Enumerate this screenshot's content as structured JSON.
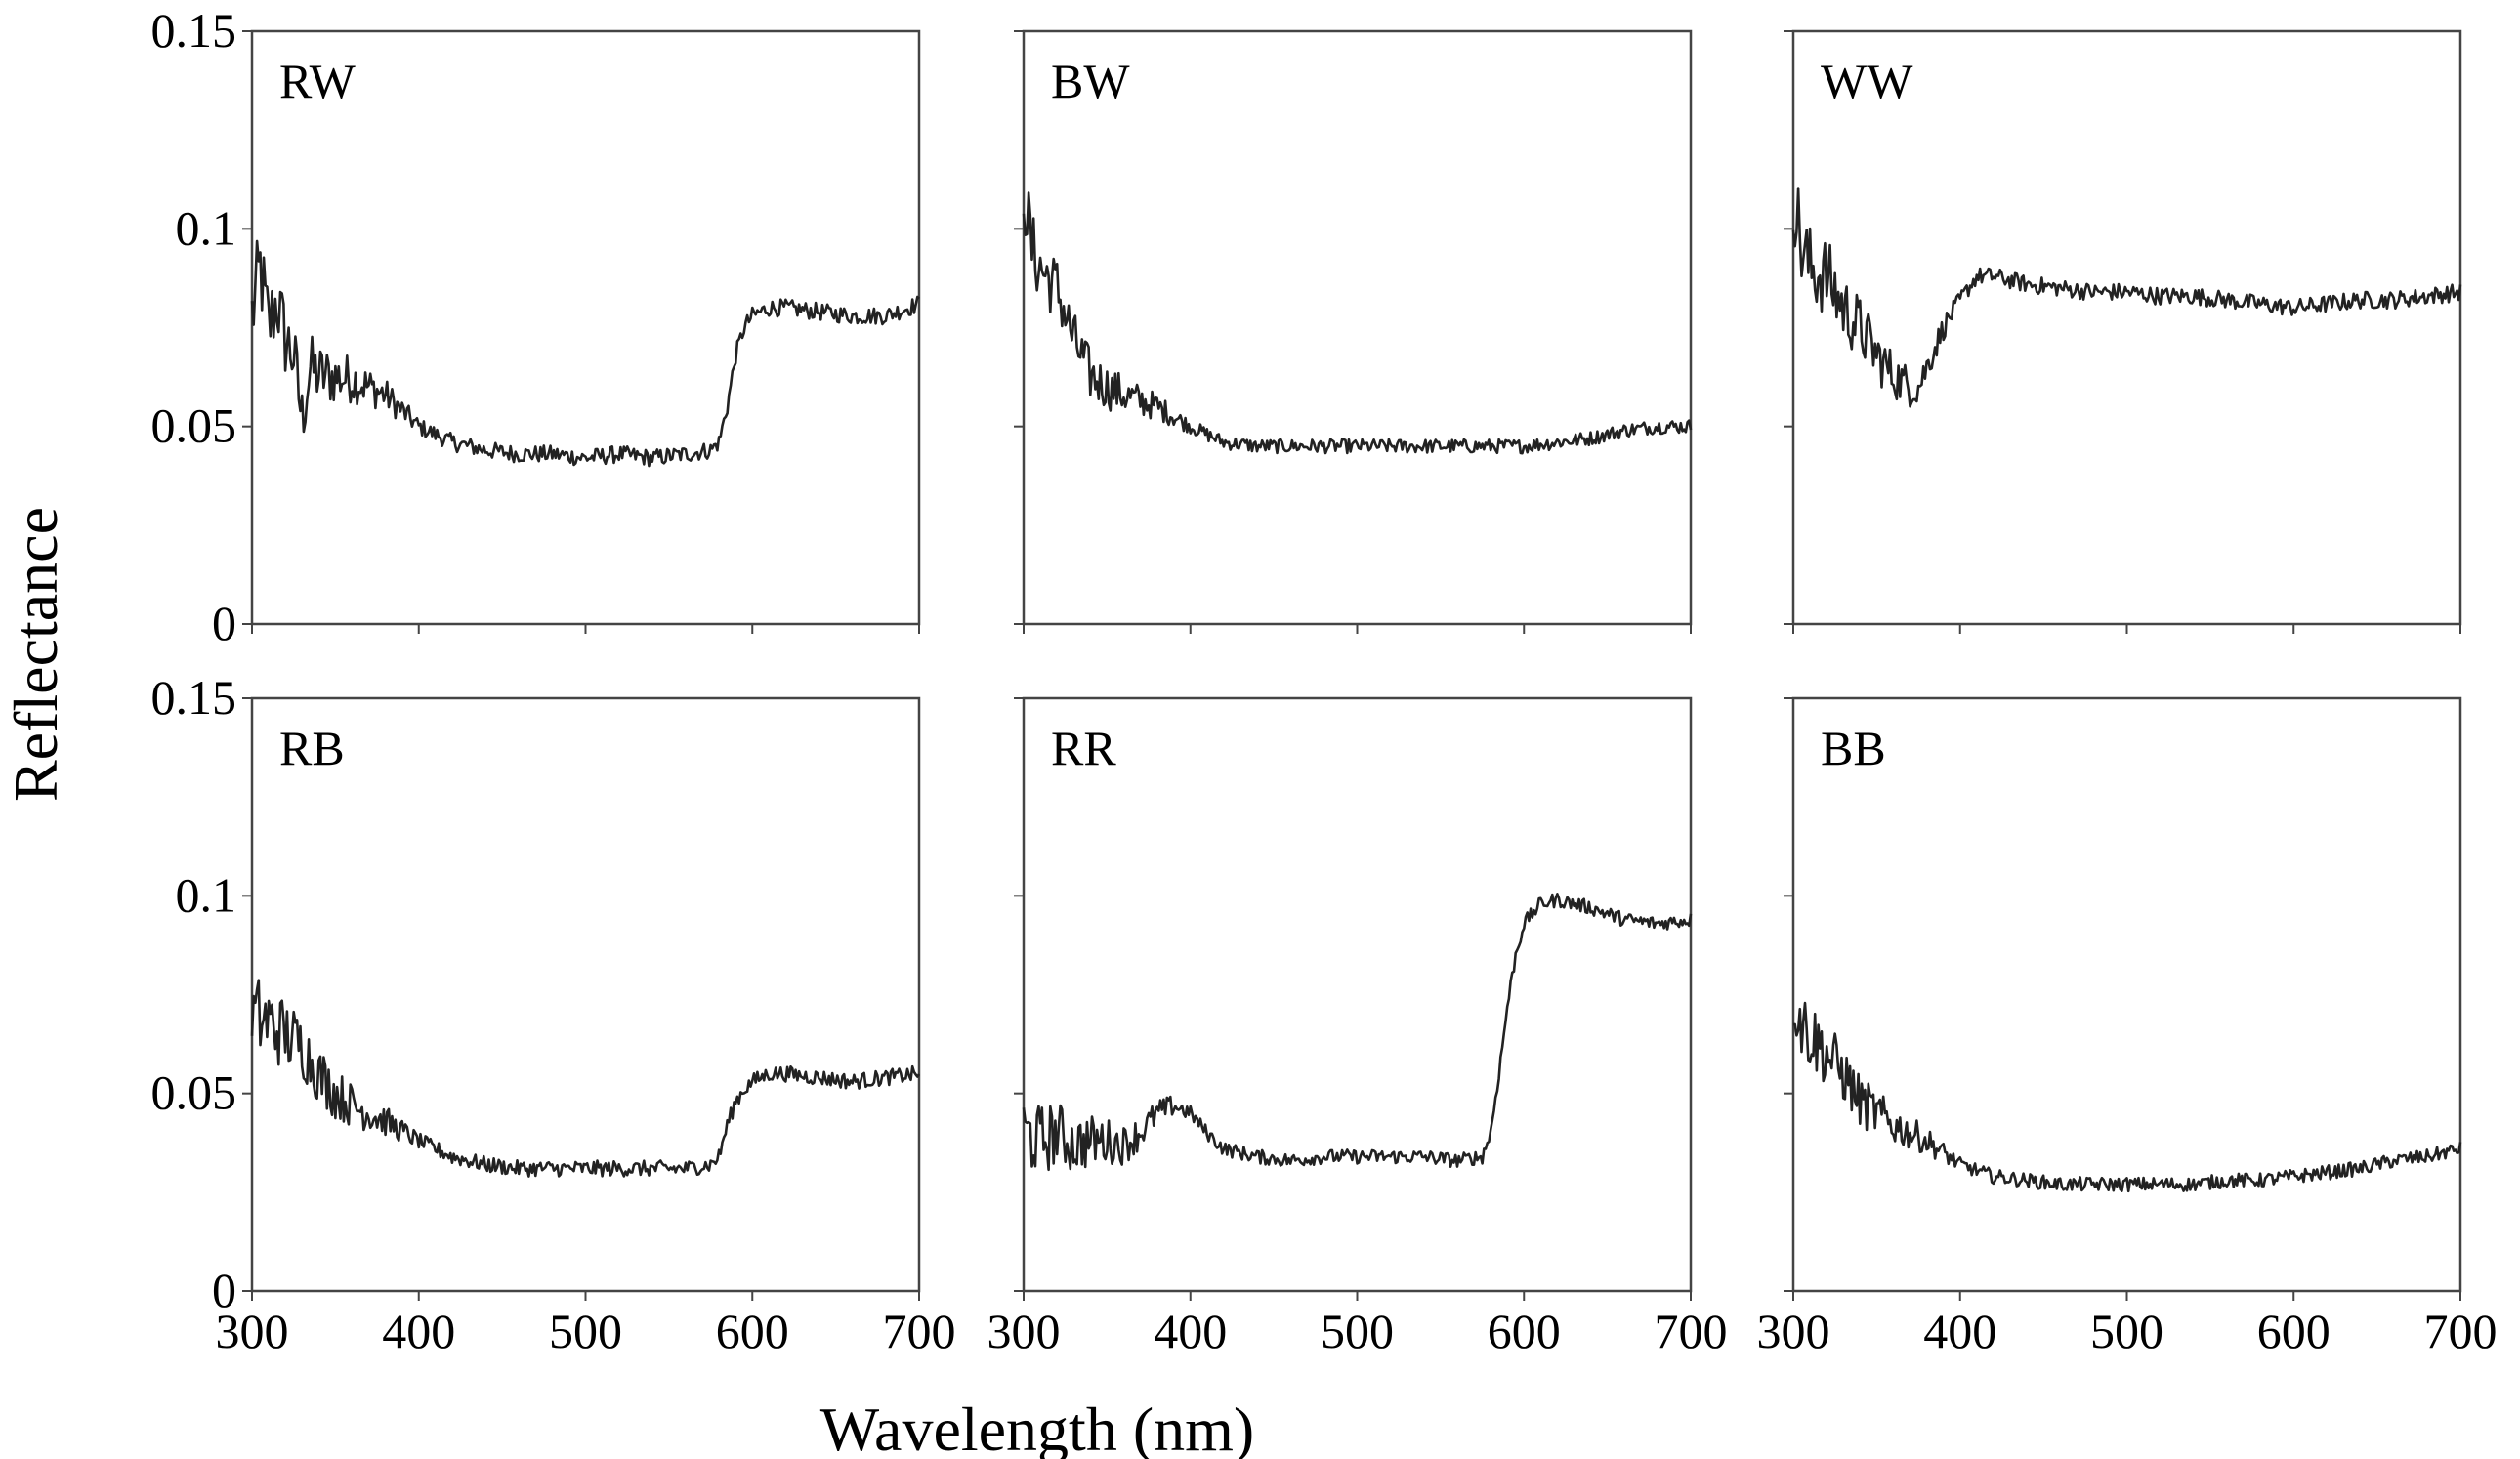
{
  "figure": {
    "ylabel": "Reflectance",
    "xlabel": "Wavelength (nm)"
  },
  "chart_data": [
    {
      "type": "line",
      "title": "RW",
      "xlim": [
        300,
        700
      ],
      "ylim": [
        0,
        0.15
      ],
      "xticks": [
        "300",
        "400",
        "500",
        "600",
        "700"
      ],
      "yticks": [
        "0",
        "0.05",
        "0.1",
        "0.15"
      ],
      "color": "#222222",
      "grid": false,
      "noise": 0.0022,
      "x": [
        300,
        305,
        310,
        315,
        320,
        325,
        330,
        335,
        340,
        360,
        380,
        400,
        420,
        440,
        460,
        480,
        500,
        520,
        540,
        560,
        575,
        580,
        585,
        590,
        595,
        600,
        610,
        620,
        640,
        660,
        680,
        700
      ],
      "y": [
        0.078,
        0.09,
        0.075,
        0.082,
        0.072,
        0.068,
        0.052,
        0.065,
        0.063,
        0.062,
        0.058,
        0.05,
        0.046,
        0.044,
        0.043,
        0.043,
        0.042,
        0.043,
        0.042,
        0.043,
        0.044,
        0.046,
        0.055,
        0.068,
        0.075,
        0.078,
        0.08,
        0.08,
        0.079,
        0.078,
        0.078,
        0.081
      ]
    },
    {
      "type": "line",
      "title": "BW",
      "xlim": [
        300,
        700
      ],
      "ylim": [
        0,
        0.15
      ],
      "xticks": [
        "300",
        "400",
        "500",
        "600",
        "700"
      ],
      "yticks": [
        "0",
        "0.05",
        "0.1",
        "0.15"
      ],
      "color": "#222222",
      "grid": false,
      "noise": 0.0018,
      "x": [
        300,
        305,
        310,
        320,
        330,
        340,
        350,
        360,
        380,
        400,
        420,
        440,
        460,
        480,
        500,
        520,
        540,
        560,
        580,
        600,
        620,
        640,
        660,
        680,
        700
      ],
      "y": [
        0.11,
        0.095,
        0.09,
        0.085,
        0.072,
        0.063,
        0.06,
        0.058,
        0.055,
        0.05,
        0.046,
        0.045,
        0.045,
        0.045,
        0.045,
        0.045,
        0.045,
        0.045,
        0.045,
        0.045,
        0.046,
        0.047,
        0.049,
        0.05,
        0.05
      ]
    },
    {
      "type": "line",
      "title": "WW",
      "xlim": [
        300,
        700
      ],
      "ylim": [
        0,
        0.15
      ],
      "xticks": [
        "300",
        "400",
        "500",
        "600",
        "700"
      ],
      "yticks": [
        "0",
        "0.05",
        "0.1",
        "0.15"
      ],
      "color": "#222222",
      "grid": false,
      "noise": 0.0022,
      "x": [
        300,
        305,
        310,
        320,
        330,
        340,
        350,
        360,
        370,
        375,
        380,
        390,
        400,
        410,
        420,
        440,
        460,
        480,
        500,
        520,
        540,
        560,
        580,
        600,
        620,
        640,
        660,
        680,
        700
      ],
      "y": [
        0.11,
        0.095,
        0.09,
        0.088,
        0.08,
        0.075,
        0.068,
        0.063,
        0.06,
        0.06,
        0.065,
        0.075,
        0.082,
        0.088,
        0.088,
        0.086,
        0.085,
        0.084,
        0.084,
        0.083,
        0.083,
        0.082,
        0.081,
        0.08,
        0.081,
        0.082,
        0.082,
        0.083,
        0.084
      ]
    },
    {
      "type": "line",
      "title": "RB",
      "xlim": [
        300,
        700
      ],
      "ylim": [
        0,
        0.15
      ],
      "xticks": [
        "300",
        "400",
        "500",
        "600",
        "700"
      ],
      "yticks": [
        "0",
        "0.05",
        "0.1",
        "0.15"
      ],
      "color": "#222222",
      "grid": false,
      "noise": 0.002,
      "x": [
        300,
        310,
        320,
        330,
        340,
        350,
        360,
        380,
        400,
        420,
        440,
        460,
        480,
        500,
        520,
        540,
        560,
        575,
        580,
        585,
        590,
        595,
        600,
        610,
        620,
        640,
        660,
        680,
        700
      ],
      "y": [
        0.07,
        0.068,
        0.065,
        0.062,
        0.055,
        0.05,
        0.047,
        0.043,
        0.038,
        0.034,
        0.032,
        0.031,
        0.031,
        0.031,
        0.031,
        0.031,
        0.031,
        0.032,
        0.034,
        0.042,
        0.048,
        0.051,
        0.053,
        0.055,
        0.055,
        0.054,
        0.053,
        0.054,
        0.055
      ]
    },
    {
      "type": "line",
      "title": "RR",
      "xlim": [
        300,
        700
      ],
      "ylim": [
        0,
        0.15
      ],
      "xticks": [
        "300",
        "400",
        "500",
        "600",
        "700"
      ],
      "yticks": [
        "0",
        "0.05",
        "0.1",
        "0.15"
      ],
      "color": "#222222",
      "grid": false,
      "noise": 0.0018,
      "x": [
        300,
        310,
        320,
        330,
        340,
        350,
        360,
        370,
        380,
        390,
        400,
        410,
        420,
        440,
        460,
        480,
        500,
        520,
        540,
        560,
        575,
        580,
        585,
        590,
        595,
        600,
        610,
        620,
        640,
        660,
        680,
        700
      ],
      "y": [
        0.04,
        0.038,
        0.04,
        0.037,
        0.038,
        0.038,
        0.037,
        0.04,
        0.045,
        0.047,
        0.045,
        0.04,
        0.036,
        0.034,
        0.033,
        0.034,
        0.034,
        0.034,
        0.034,
        0.033,
        0.034,
        0.04,
        0.055,
        0.072,
        0.085,
        0.093,
        0.098,
        0.099,
        0.097,
        0.094,
        0.093,
        0.094
      ]
    },
    {
      "type": "line",
      "title": "BB",
      "xlim": [
        300,
        700
      ],
      "ylim": [
        0,
        0.15
      ],
      "xticks": [
        "300",
        "400",
        "500",
        "600",
        "700"
      ],
      "yticks": [
        "0",
        "0.05",
        "0.1",
        "0.15"
      ],
      "color": "#222222",
      "grid": false,
      "noise": 0.0018,
      "x": [
        300,
        305,
        310,
        320,
        330,
        340,
        350,
        360,
        380,
        400,
        420,
        440,
        460,
        480,
        500,
        520,
        540,
        560,
        580,
        600,
        620,
        640,
        660,
        680,
        700
      ],
      "y": [
        0.075,
        0.068,
        0.065,
        0.06,
        0.055,
        0.048,
        0.045,
        0.042,
        0.038,
        0.032,
        0.029,
        0.028,
        0.027,
        0.027,
        0.027,
        0.027,
        0.027,
        0.028,
        0.028,
        0.029,
        0.03,
        0.031,
        0.033,
        0.034,
        0.036
      ]
    }
  ]
}
